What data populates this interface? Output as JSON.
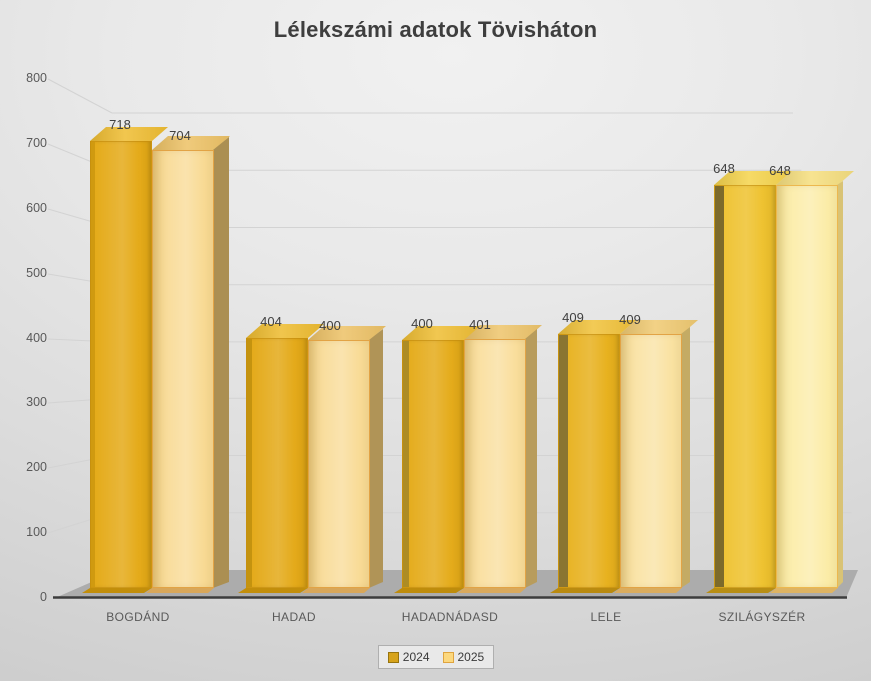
{
  "chart_data": {
    "type": "bar",
    "projection": "3d",
    "title": "Lélekszámi adatok Tövisháton",
    "categories": [
      "BOGDÁND",
      "HADAD",
      "HADADNÁDASD",
      "LELE",
      "SZILÁGYSZÉR"
    ],
    "series": [
      {
        "name": "2024",
        "values": [
          718,
          404,
          400,
          409,
          648
        ],
        "color": "#D7A31B",
        "border": "#97740E"
      },
      {
        "name": "2025",
        "values": [
          704,
          400,
          401,
          409,
          648
        ],
        "color": "#FCD87E",
        "border": "#DFA43F"
      }
    ],
    "y_ticks": [
      0,
      100,
      200,
      300,
      400,
      500,
      600,
      700,
      800
    ],
    "ylim": [
      0,
      800
    ],
    "grid": true,
    "legend_position": "bottom",
    "xlabel": "",
    "ylabel": "",
    "colors": {
      "background_top": "#F1F1F1",
      "background_bottom": "#C6C6C6",
      "floor": "#ACACAC",
      "axis_line": "#3C3C3C",
      "gridline": "#D3D3D3",
      "title_text": "#3E3E3E",
      "tick_text": "#595959",
      "value_label_text": "#404040"
    },
    "bar_styles": [
      {
        "y2024": {
          "front": "#E4A915",
          "top": "#EFBD32",
          "foot": "#C28E0B",
          "leftStrip": "#D09A10",
          "leftW": 4
        },
        "y2025": {
          "front": "#F8D88E",
          "top": "#EDC266",
          "edge": "#E2A345",
          "side": "#AB8F52",
          "sideW": 15,
          "foot": "#D8A75A"
        }
      },
      {
        "y2024": {
          "front": "#E3A815",
          "top": "#EEBC30",
          "foot": "#C28E0B",
          "leftStrip": "#C4930F",
          "leftW": 5
        },
        "y2025": {
          "front": "#F8D990",
          "top": "#EDC267",
          "edge": "#E2A345",
          "side": "#B09457",
          "sideW": 13,
          "foot": "#D8A75A"
        }
      },
      {
        "y2024": {
          "front": "#E4AA17",
          "top": "#EFBE34",
          "foot": "#BE8C0C",
          "leftStrip": "#AD8C25",
          "leftW": 6
        },
        "y2025": {
          "front": "#F9DC96",
          "top": "#EEC56C",
          "edge": "#E2A345",
          "side": "#B89C5C",
          "sideW": 11,
          "foot": "#D9A95C"
        }
      },
      {
        "y2024": {
          "front": "#E7B01B",
          "top": "#F1C23A",
          "foot": "#B98A10",
          "leftStrip": "#8A7531",
          "leftW": 9
        },
        "y2025": {
          "front": "#F9E09C",
          "top": "#F0CA72",
          "edge": "#E2A345",
          "side": "#C4AB64",
          "sideW": 8,
          "foot": "#DAAC5E"
        }
      },
      {
        "y2024": {
          "front": "#EEC12C",
          "top": "#F5D44D",
          "foot": "#B88E14",
          "leftStrip": "#7C6A2B",
          "leftW": 9
        },
        "y2025": {
          "front": "#FBEBA2",
          "top": "#F6DF7F",
          "edge": "#EDB84E",
          "side": "#D9C375",
          "sideW": 5,
          "foot": "#DEB463"
        }
      }
    ]
  }
}
